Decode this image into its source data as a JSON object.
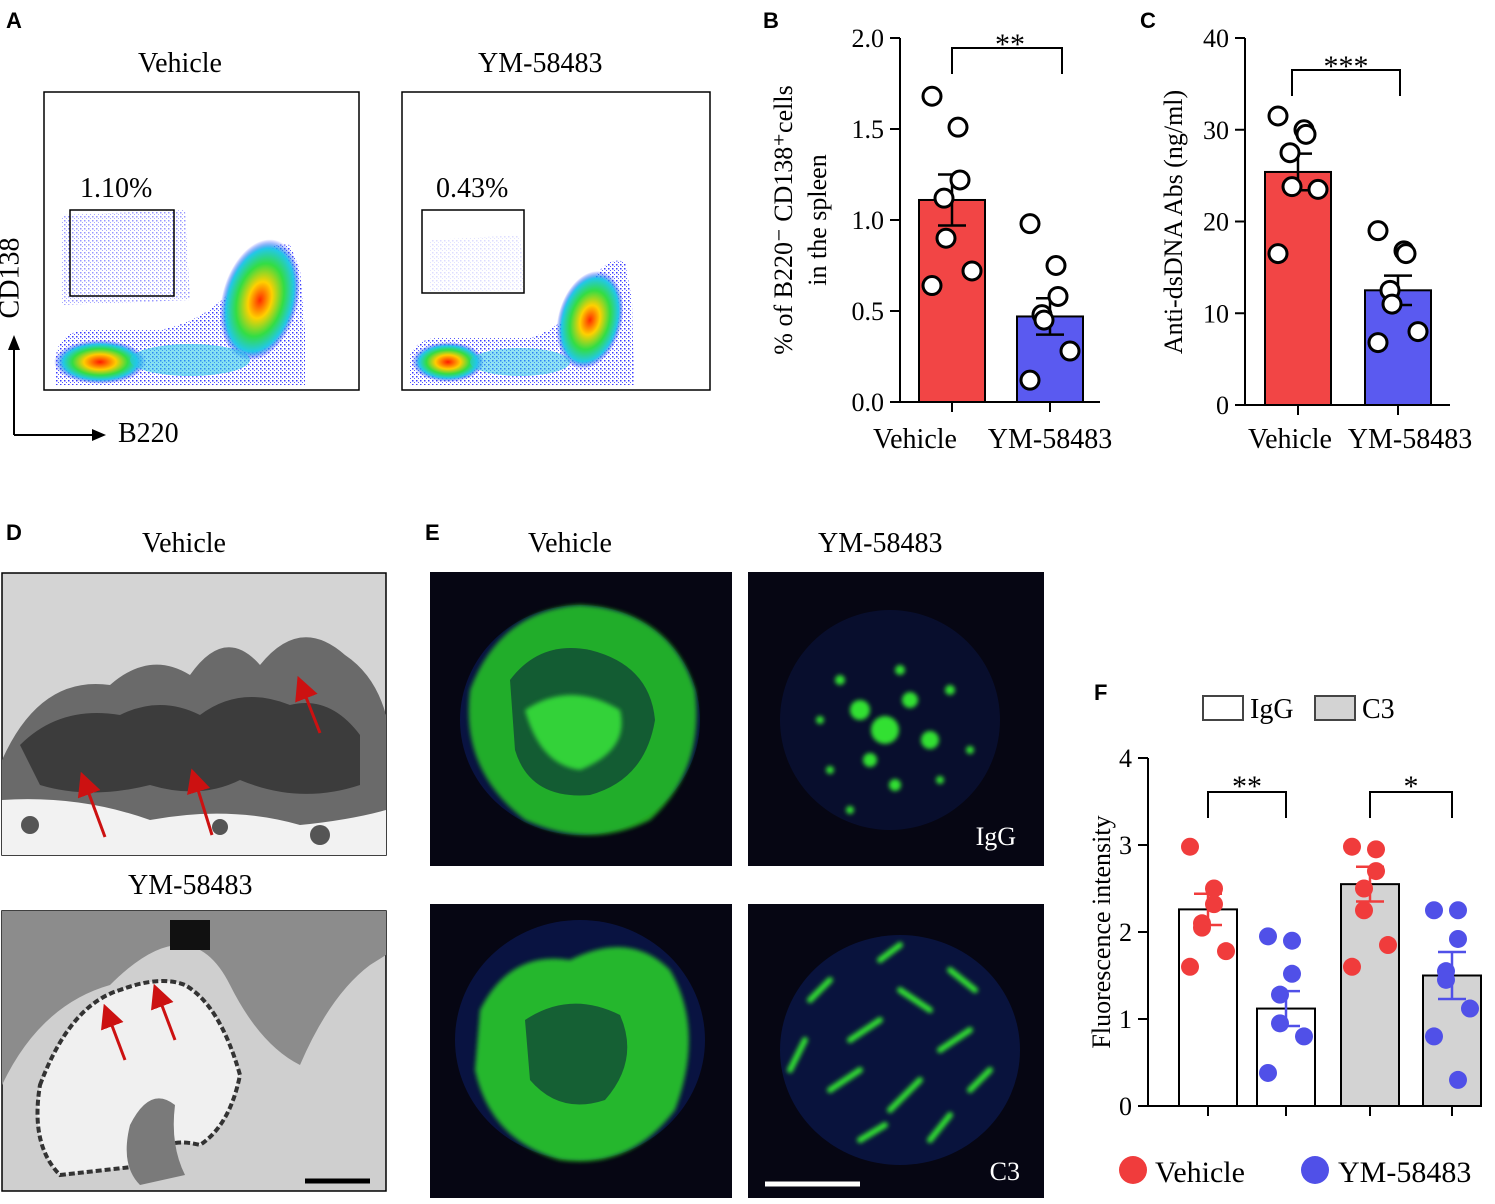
{
  "panels": {
    "A": {
      "letter": "A",
      "left_title": "Vehicle",
      "right_title": "YM-58483",
      "left_gate": "1.10%",
      "right_gate": "0.43%",
      "y_axis": "CD138",
      "x_axis": "B220"
    },
    "B": {
      "letter": "B"
    },
    "C": {
      "letter": "C"
    },
    "D": {
      "letter": "D",
      "top_title": "Vehicle",
      "bottom_title": "YM-58483"
    },
    "E": {
      "letter": "E",
      "left_title": "Vehicle",
      "right_title": "YM-58483",
      "row1_tag": "IgG",
      "row2_tag": "C3"
    },
    "F": {
      "letter": "F",
      "legend_fill": [
        "IgG",
        "C3"
      ],
      "legend_points": [
        "Vehicle",
        "YM-58483"
      ]
    }
  },
  "colors": {
    "vehicle_bar": "#f24545",
    "ym_bar": "#5a5af0",
    "vehicle_dot": "#f03c3c",
    "ym_dot": "#5050e8",
    "c3_bar": "#d3d3d3",
    "fluor_green": "#33dd33"
  },
  "chart_data": [
    {
      "id": "B",
      "type": "bar",
      "categories": [
        "Vehicle",
        "YM-58483"
      ],
      "values": [
        1.11,
        0.47
      ],
      "errors": [
        0.14,
        0.1
      ],
      "points": [
        [
          1.68,
          1.51,
          1.22,
          1.12,
          0.9,
          0.72,
          0.64
        ],
        [
          0.98,
          0.75,
          0.58,
          0.48,
          0.45,
          0.28,
          0.12
        ]
      ],
      "ylabel_line1": "% of B220⁻ CD138⁺cells",
      "ylabel_line2": "in the spleen",
      "ylim": [
        0,
        2.0
      ],
      "yticks": [
        "0.0",
        "0.5",
        "1.0",
        "1.5",
        "2.0"
      ],
      "significance": "**"
    },
    {
      "id": "C",
      "type": "bar",
      "categories": [
        "Vehicle",
        "YM-58483"
      ],
      "values": [
        25.4,
        12.5
      ],
      "errors": [
        2.0,
        1.6
      ],
      "points": [
        [
          31.5,
          30.0,
          29.5,
          27.5,
          23.8,
          23.5,
          16.5
        ],
        [
          19.0,
          16.8,
          16.5,
          12.5,
          11.0,
          8.0,
          6.8
        ]
      ],
      "ylabel": "Anti-dsDNA Abs (ng/ml)",
      "ylim": [
        0,
        40
      ],
      "yticks": [
        "0",
        "10",
        "20",
        "30",
        "40"
      ],
      "significance": "***"
    },
    {
      "id": "F",
      "type": "bar",
      "categories": [
        "IgG Vehicle",
        "IgG YM-58483",
        "C3 Vehicle",
        "C3 YM-58483"
      ],
      "values": [
        2.26,
        1.12,
        2.55,
        1.5
      ],
      "errors": [
        0.18,
        0.2,
        0.2,
        0.27
      ],
      "points": [
        [
          2.98,
          2.5,
          2.32,
          2.1,
          2.05,
          1.78,
          1.6
        ],
        [
          1.95,
          1.9,
          1.52,
          1.28,
          0.95,
          0.8,
          0.38
        ],
        [
          2.98,
          2.95,
          2.7,
          2.5,
          2.25,
          1.85,
          1.6
        ],
        [
          2.25,
          2.25,
          1.92,
          1.55,
          1.45,
          1.12,
          0.8,
          0.3
        ]
      ],
      "series_fill": [
        "IgG",
        "IgG",
        "C3",
        "C3"
      ],
      "point_group": [
        "Vehicle",
        "YM-58483",
        "Vehicle",
        "YM-58483"
      ],
      "ylabel": "Fluorescence intensity",
      "ylim": [
        0,
        4
      ],
      "yticks": [
        "0",
        "1",
        "2",
        "3",
        "4"
      ],
      "significance": [
        "**",
        "*"
      ]
    }
  ]
}
